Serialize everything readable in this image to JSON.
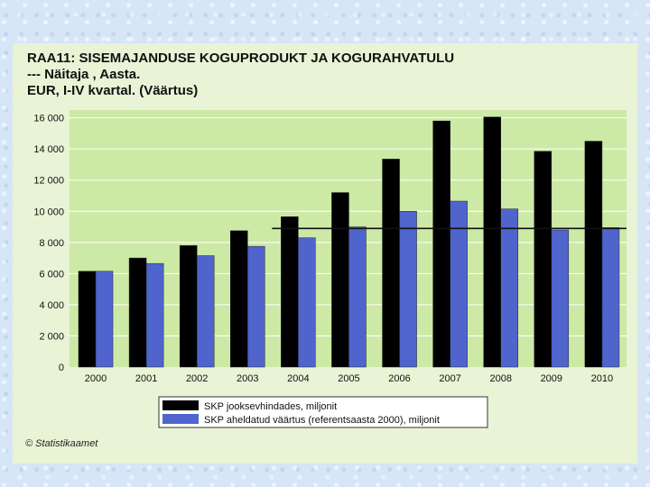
{
  "chart_data": {
    "type": "bar",
    "title_lines": [
      "RAA11: SISEMAJANDUSE KOGUPRODUKT JA KOGURAHVATULU",
      "--- Näitaja , Aasta.",
      "EUR, I-IV kvartal. (Väärtus)"
    ],
    "categories": [
      "2000",
      "2001",
      "2002",
      "2003",
      "2004",
      "2005",
      "2006",
      "2007",
      "2008",
      "2009",
      "2010"
    ],
    "series": [
      {
        "name": "SKP jooksevhindades, miljonit",
        "color": "#000000",
        "values": [
          6150,
          7000,
          7800,
          8750,
          9650,
          11200,
          13350,
          15800,
          16050,
          13850,
          14500
        ]
      },
      {
        "name": "SKP aheldatud väärtus (referentsaasta 2000), miljonit",
        "color": "#4f65cd",
        "values": [
          6150,
          6650,
          7150,
          7750,
          8300,
          9000,
          10000,
          10650,
          10150,
          8800,
          8950
        ]
      }
    ],
    "reference_line": {
      "value": 8900,
      "from_category": "2004",
      "to_category": "2010"
    },
    "yticks": [
      0,
      2000,
      4000,
      6000,
      8000,
      10000,
      12000,
      14000,
      16000
    ],
    "ytick_labels": [
      "0",
      "2 000",
      "4 000",
      "6 000",
      "8 000",
      "10 000",
      "12 000",
      "14 000",
      "16 000"
    ],
    "ylim": [
      0,
      16500
    ],
    "grid": true,
    "legend": "bottom-center",
    "plot_bg": "#cde9a6"
  },
  "footer": {
    "copyright": "© Statistikaamet"
  }
}
